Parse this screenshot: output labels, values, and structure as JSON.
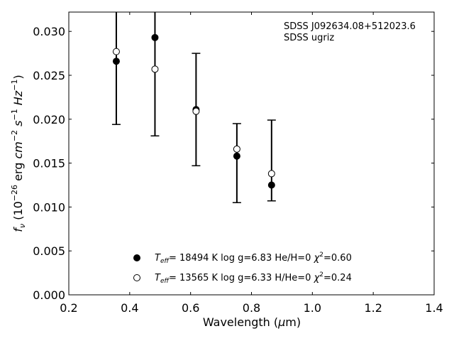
{
  "chart_data": {
    "type": "scatter",
    "annotation": [
      "SDSS J092634.08+512023.6",
      "SDSS ugriz"
    ],
    "xlabel": "Wavelength (μm)",
    "ylabel": "f_ν (10^-26 erg cm^-2 s^-1 Hz^-1)",
    "xlim": [
      0.2,
      1.4
    ],
    "ylim": [
      0.0,
      0.0322
    ],
    "xticks": [
      "0.2",
      "0.4",
      "0.6",
      "0.8",
      "1.0",
      "1.2",
      "1.4"
    ],
    "yticks": [
      "0.000",
      "0.005",
      "0.010",
      "0.015",
      "0.020",
      "0.025",
      "0.030"
    ],
    "grid": false,
    "legend_position": "bottom-center",
    "observed": {
      "x": [
        0.356,
        0.483,
        0.618,
        0.752,
        0.866
      ],
      "y": [
        0.0266,
        0.0293,
        0.0211,
        0.0158,
        0.0125
      ],
      "err_low": [
        0.0194,
        0.0181,
        0.0147,
        0.0105,
        0.0107
      ],
      "err_high": [
        0.0322,
        0.0322,
        0.0275,
        0.0195,
        0.0199
      ]
    },
    "series": [
      {
        "name": "T_eff= 18494 K  log g=6.83  He/H=0  χ²=0.60",
        "marker": "filled-circle",
        "x": [
          0.356,
          0.483,
          0.618,
          0.752,
          0.866
        ],
        "y": [
          0.0266,
          0.0293,
          0.0211,
          0.0158,
          0.0125
        ]
      },
      {
        "name": "T_eff= 13565 K  log g=6.33  H/He=0  χ²=0.24",
        "marker": "open-circle",
        "x": [
          0.356,
          0.483,
          0.618,
          0.752,
          0.866
        ],
        "y": [
          0.0277,
          0.0257,
          0.0209,
          0.0166,
          0.0138
        ]
      }
    ]
  }
}
